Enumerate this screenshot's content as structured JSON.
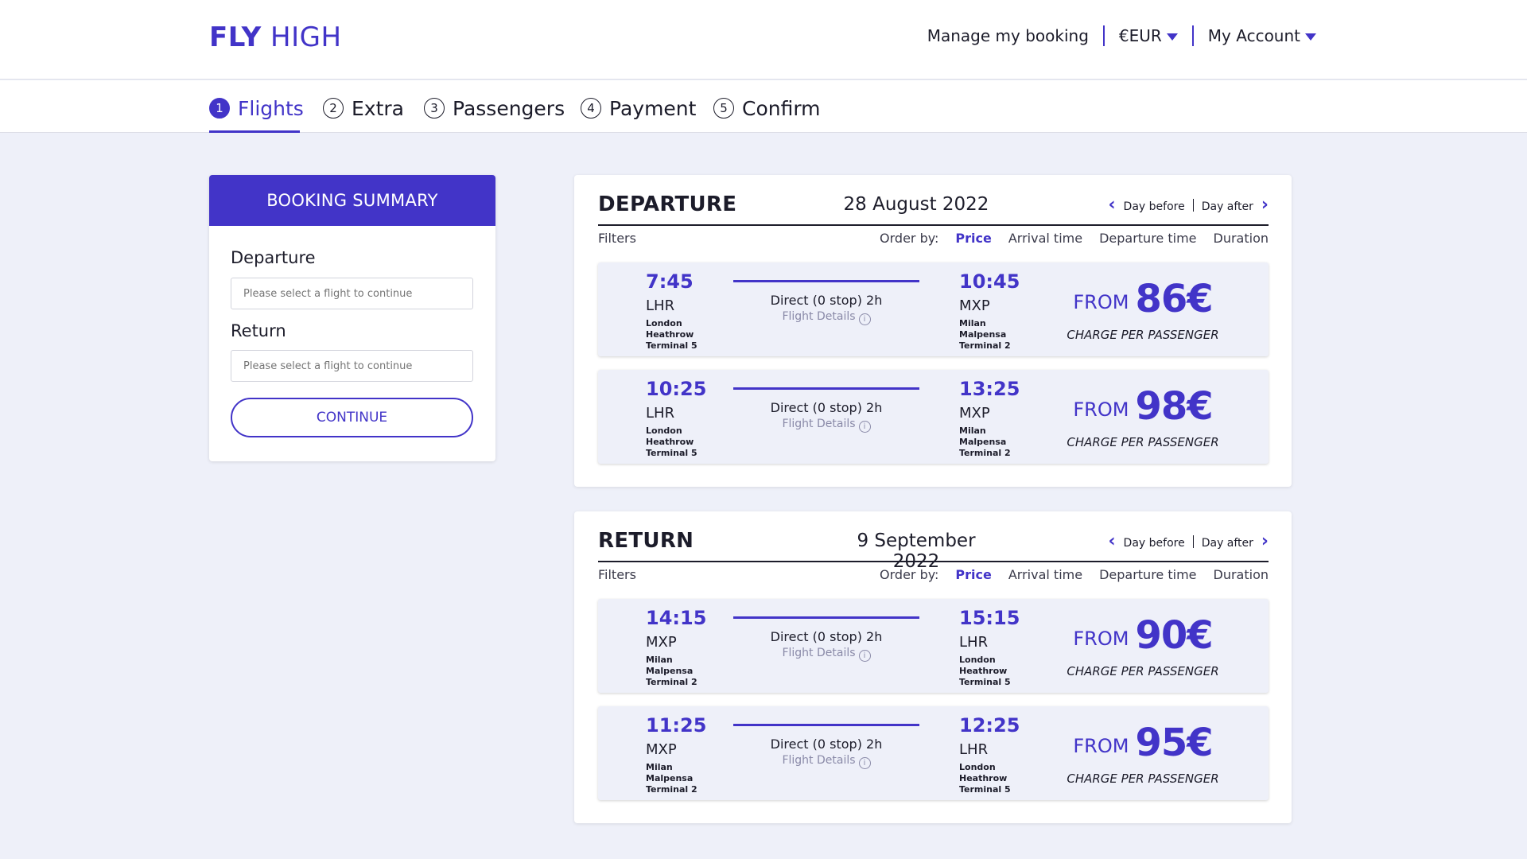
{
  "brand": {
    "logo_bold": "FLY",
    "logo_light": "HIGH"
  },
  "top_nav": {
    "manage": "Manage my booking",
    "currency": "€EUR",
    "account": "My Account"
  },
  "steps": [
    {
      "num": "1",
      "label": "Flights"
    },
    {
      "num": "2",
      "label": "Extra"
    },
    {
      "num": "3",
      "label": "Passengers"
    },
    {
      "num": "4",
      "label": "Payment"
    },
    {
      "num": "5",
      "label": "Confirm"
    }
  ],
  "summary": {
    "title": "BOOKING SUMMARY",
    "departure_label": "Departure",
    "return_label": "Return",
    "placeholder": "Please select a flight to continue",
    "continue": "CONTINUE"
  },
  "labels": {
    "day_before": "Day before",
    "day_after": "Day after",
    "filters": "Filters",
    "order_by": "Order by:",
    "price": "Price",
    "arrival_time": "Arrival time",
    "departure_time": "Departure time",
    "duration": "Duration",
    "direct": "Direct (0 stop) 2h",
    "flight_details": "Flight Details",
    "from": "FROM",
    "charge": "CHARGE PER PASSENGER"
  },
  "departure": {
    "title": "DEPARTURE",
    "date": "28 August 2022",
    "flights": [
      {
        "dep_time": "7:45",
        "dep_code": "LHR",
        "dep_city": [
          "London",
          "Heathrow",
          "Terminal 5"
        ],
        "arr_time": "10:45",
        "arr_code": "MXP",
        "arr_city": [
          "Milan",
          "Malpensa",
          "Terminal 2"
        ],
        "price": "86€"
      },
      {
        "dep_time": "10:25",
        "dep_code": "LHR",
        "dep_city": [
          "London",
          "Heathrow",
          "Terminal 5"
        ],
        "arr_time": "13:25",
        "arr_code": "MXP",
        "arr_city": [
          "Milan",
          "Malpensa",
          "Terminal 2"
        ],
        "price": "98€"
      }
    ]
  },
  "return": {
    "title": "RETURN",
    "date": "9 September 2022",
    "flights": [
      {
        "dep_time": "14:15",
        "dep_code": "MXP",
        "dep_city": [
          "Milan",
          "Malpensa",
          "Terminal 2"
        ],
        "arr_time": "15:15",
        "arr_code": "LHR",
        "arr_city": [
          "London",
          "Heathrow",
          "Terminal 5"
        ],
        "price": "90€"
      },
      {
        "dep_time": "11:25",
        "dep_code": "MXP",
        "dep_city": [
          "Milan",
          "Malpensa",
          "Terminal 2"
        ],
        "arr_time": "12:25",
        "arr_code": "LHR",
        "arr_city": [
          "London",
          "Heathrow",
          "Terminal 5"
        ],
        "price": "95€"
      }
    ]
  },
  "colors": {
    "accent": "#4234c8",
    "background": "#eef0f9"
  }
}
